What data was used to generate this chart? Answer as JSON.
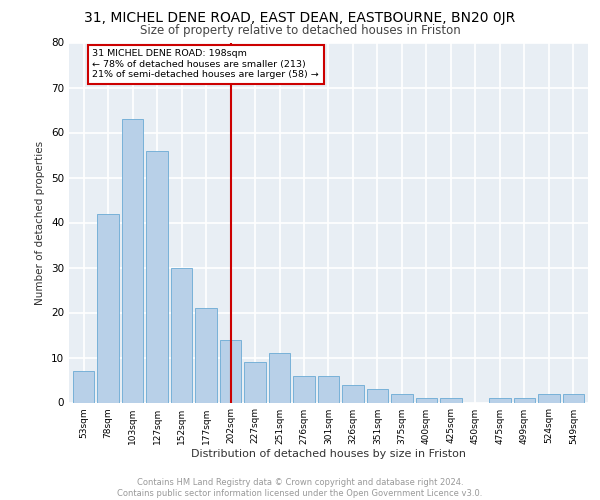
{
  "title1": "31, MICHEL DENE ROAD, EAST DEAN, EASTBOURNE, BN20 0JR",
  "title2": "Size of property relative to detached houses in Friston",
  "xlabel": "Distribution of detached houses by size in Friston",
  "ylabel": "Number of detached properties",
  "categories": [
    "53sqm",
    "78sqm",
    "103sqm",
    "127sqm",
    "152sqm",
    "177sqm",
    "202sqm",
    "227sqm",
    "251sqm",
    "276sqm",
    "301sqm",
    "326sqm",
    "351sqm",
    "375sqm",
    "400sqm",
    "425sqm",
    "450sqm",
    "475sqm",
    "499sqm",
    "524sqm",
    "549sqm"
  ],
  "values": [
    7,
    42,
    63,
    56,
    30,
    21,
    14,
    9,
    11,
    6,
    6,
    4,
    3,
    2,
    1,
    1,
    0,
    1,
    1,
    2,
    2
  ],
  "bar_color": "#b8d0e8",
  "bar_edge_color": "#6aaad4",
  "vline_x": 6,
  "vline_color": "#cc0000",
  "annotation_text": "31 MICHEL DENE ROAD: 198sqm\n← 78% of detached houses are smaller (213)\n21% of semi-detached houses are larger (58) →",
  "annotation_box_color": "#cc0000",
  "ylim": [
    0,
    80
  ],
  "yticks": [
    0,
    10,
    20,
    30,
    40,
    50,
    60,
    70,
    80
  ],
  "footer": "Contains HM Land Registry data © Crown copyright and database right 2024.\nContains public sector information licensed under the Open Government Licence v3.0.",
  "bg_color": "#e8eef4",
  "grid_color": "#ffffff"
}
